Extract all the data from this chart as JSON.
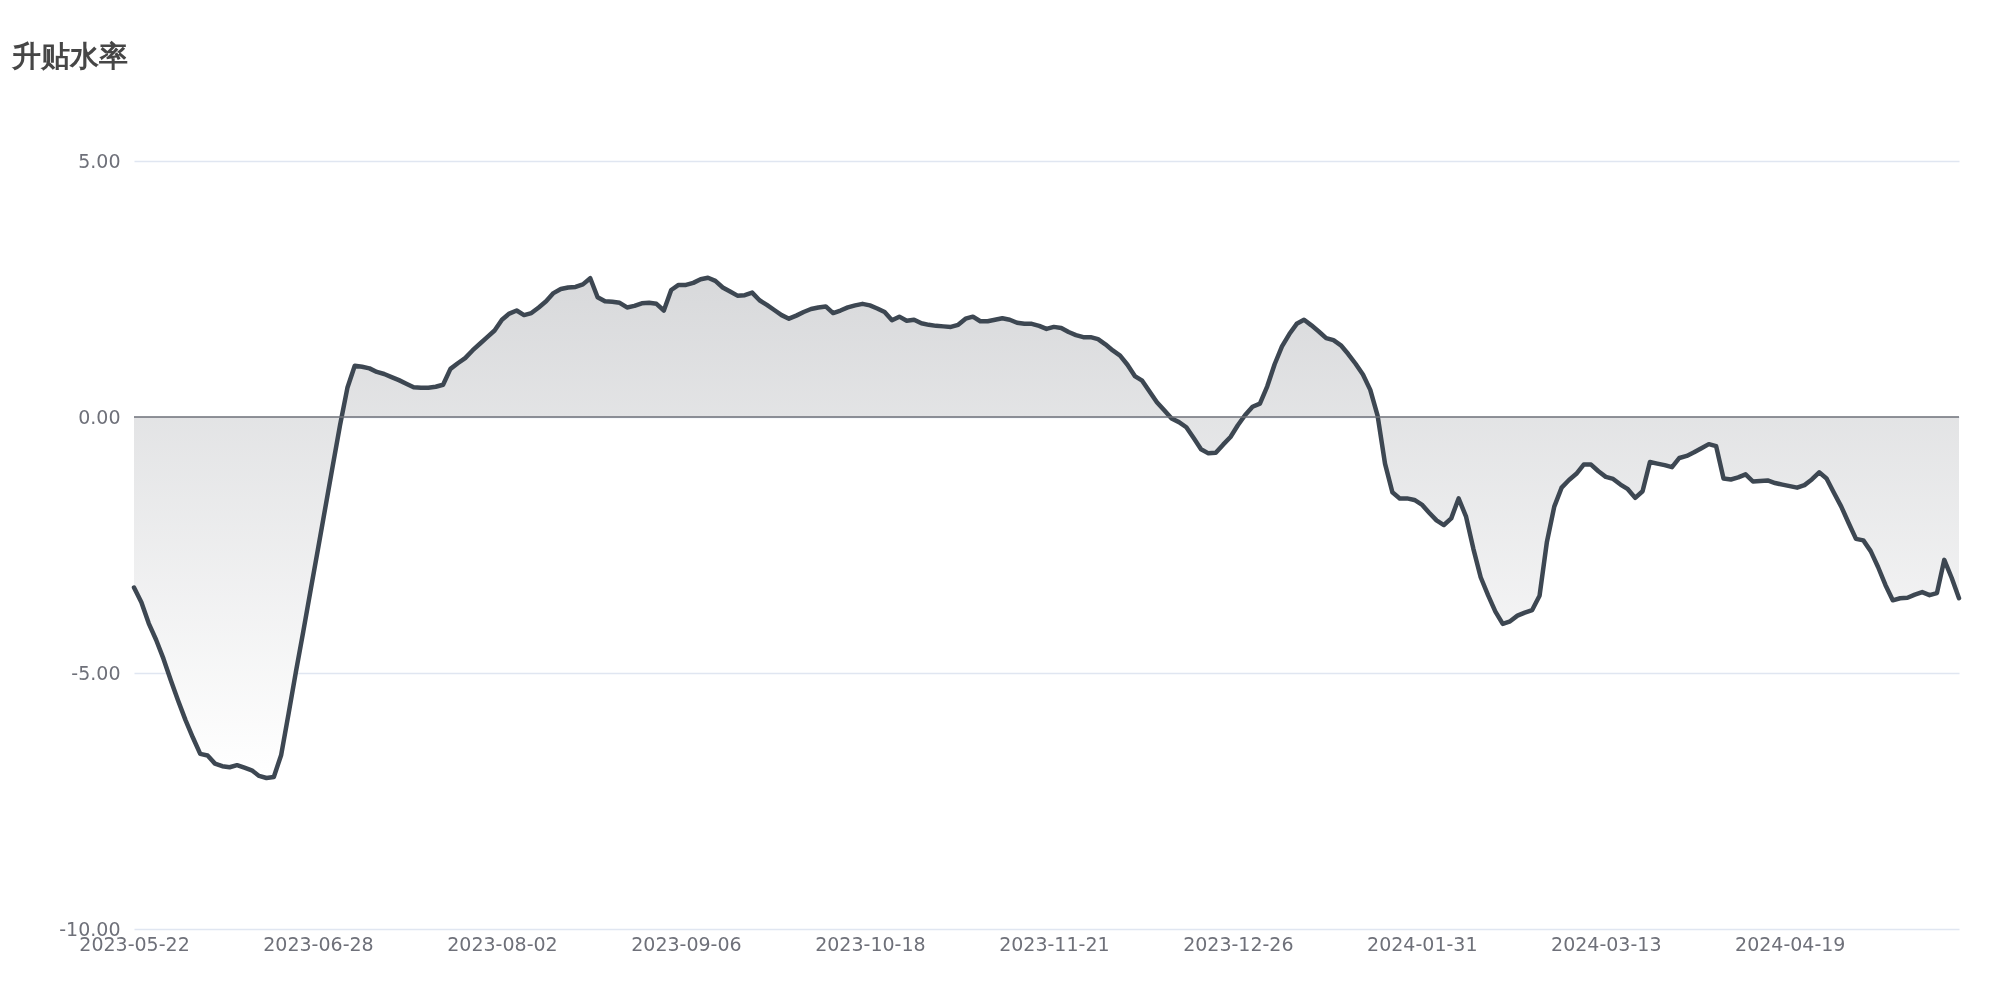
{
  "chart_data": {
    "type": "area",
    "title": "升贴水率",
    "categories": [
      "2023-05-22",
      null,
      null,
      null,
      null,
      null,
      null,
      null,
      null,
      null,
      null,
      null,
      null,
      null,
      null,
      null,
      null,
      null,
      null,
      null,
      null,
      null,
      null,
      null,
      null,
      "2023-06-28",
      null,
      null,
      null,
      null,
      null,
      null,
      null,
      null,
      null,
      null,
      null,
      null,
      null,
      null,
      null,
      null,
      null,
      null,
      null,
      null,
      null,
      null,
      null,
      null,
      "2023-08-02",
      null,
      null,
      null,
      null,
      null,
      null,
      null,
      null,
      null,
      null,
      null,
      null,
      null,
      null,
      null,
      null,
      null,
      null,
      null,
      null,
      null,
      null,
      null,
      null,
      "2023-09-06",
      null,
      null,
      null,
      null,
      null,
      null,
      null,
      null,
      null,
      null,
      null,
      null,
      null,
      null,
      null,
      null,
      null,
      null,
      null,
      null,
      null,
      null,
      null,
      null,
      "2023-10-18",
      null,
      null,
      null,
      null,
      null,
      null,
      null,
      null,
      null,
      null,
      null,
      null,
      null,
      null,
      null,
      null,
      null,
      null,
      null,
      null,
      null,
      null,
      null,
      null,
      "2023-11-21",
      null,
      null,
      null,
      null,
      null,
      null,
      null,
      null,
      null,
      null,
      null,
      null,
      null,
      null,
      null,
      null,
      null,
      null,
      null,
      null,
      null,
      null,
      null,
      null,
      "2023-12-26",
      null,
      null,
      null,
      null,
      null,
      null,
      null,
      null,
      null,
      null,
      null,
      null,
      null,
      null,
      null,
      null,
      null,
      null,
      null,
      null,
      null,
      null,
      null,
      null,
      "2024-01-31",
      null,
      null,
      null,
      null,
      null,
      null,
      null,
      null,
      null,
      null,
      null,
      null,
      null,
      null,
      null,
      null,
      null,
      null,
      null,
      null,
      null,
      null,
      null,
      null,
      "2024-03-13",
      null,
      null,
      null,
      null,
      null,
      null,
      null,
      null,
      null,
      null,
      null,
      null,
      null,
      null,
      null,
      null,
      null,
      null,
      null,
      null,
      null,
      null,
      null,
      null,
      "2024-04-19",
      null,
      null,
      null,
      null,
      null,
      null,
      null,
      null,
      null,
      null,
      null,
      null,
      null,
      null,
      null,
      null,
      null,
      null,
      null,
      null,
      null,
      null,
      null
    ],
    "series": [
      {
        "color": "#3d4752",
        "values": [
          -3.33,
          -3.62,
          -4.03,
          -4.35,
          -4.72,
          -5.14,
          -5.54,
          -5.92,
          -6.26,
          -6.58,
          -6.61,
          -6.77,
          -6.82,
          -6.84,
          -6.8,
          -6.85,
          -6.9,
          -7.01,
          -7.05,
          -7.03,
          -6.6,
          -5.8,
          -4.98,
          -4.19,
          -3.38,
          -2.58,
          -1.77,
          -0.96,
          -0.16,
          0.57,
          1.0,
          0.98,
          0.95,
          0.88,
          0.84,
          0.78,
          0.72,
          0.65,
          0.58,
          0.57,
          0.57,
          0.59,
          0.63,
          0.94,
          1.05,
          1.15,
          1.3,
          1.43,
          1.56,
          1.69,
          1.9,
          2.02,
          2.08,
          1.99,
          2.03,
          2.14,
          2.26,
          2.42,
          2.5,
          2.53,
          2.54,
          2.59,
          2.71,
          2.34,
          2.26,
          2.25,
          2.23,
          2.14,
          2.17,
          2.22,
          2.23,
          2.21,
          2.08,
          2.48,
          2.58,
          2.58,
          2.62,
          2.69,
          2.72,
          2.66,
          2.53,
          2.45,
          2.37,
          2.38,
          2.43,
          2.28,
          2.19,
          2.09,
          1.99,
          1.92,
          1.98,
          2.05,
          2.11,
          2.14,
          2.16,
          2.03,
          2.08,
          2.14,
          2.18,
          2.21,
          2.18,
          2.12,
          2.05,
          1.89,
          1.96,
          1.88,
          1.9,
          1.83,
          1.8,
          1.78,
          1.77,
          1.76,
          1.8,
          1.92,
          1.96,
          1.87,
          1.87,
          1.9,
          1.93,
          1.9,
          1.84,
          1.82,
          1.82,
          1.78,
          1.72,
          1.76,
          1.74,
          1.66,
          1.6,
          1.56,
          1.56,
          1.52,
          1.42,
          1.3,
          1.2,
          1.02,
          0.8,
          0.71,
          0.5,
          0.29,
          0.13,
          -0.03,
          -0.1,
          -0.2,
          -0.41,
          -0.63,
          -0.71,
          -0.7,
          -0.54,
          -0.39,
          -0.16,
          0.04,
          0.2,
          0.26,
          0.6,
          1.03,
          1.38,
          1.62,
          1.82,
          1.9,
          1.79,
          1.67,
          1.54,
          1.5,
          1.4,
          1.23,
          1.04,
          0.83,
          0.53,
          0.02,
          -0.91,
          -1.47,
          -1.59,
          -1.59,
          -1.62,
          -1.71,
          -1.87,
          -2.02,
          -2.11,
          -1.98,
          -1.59,
          -1.94,
          -2.57,
          -3.13,
          -3.48,
          -3.8,
          -4.04,
          -3.99,
          -3.88,
          -3.82,
          -3.77,
          -3.49,
          -2.44,
          -1.75,
          -1.38,
          -1.23,
          -1.11,
          -0.93,
          -0.93,
          -1.06,
          -1.17,
          -1.21,
          -1.32,
          -1.41,
          -1.58,
          -1.45,
          -0.88,
          -0.91,
          -0.94,
          -0.98,
          -0.8,
          -0.76,
          -0.69,
          -0.61,
          -0.53,
          -0.57,
          -1.2,
          -1.22,
          -1.18,
          -1.12,
          -1.26,
          -1.25,
          -1.24,
          -1.29,
          -1.32,
          -1.35,
          -1.38,
          -1.33,
          -1.22,
          -1.08,
          -1.2,
          -1.48,
          -1.75,
          -2.07,
          -2.38,
          -2.41,
          -2.62,
          -2.93,
          -3.28,
          -3.58,
          -3.54,
          -3.53,
          -3.47,
          -3.42,
          -3.48,
          -3.44,
          -2.79,
          -3.14,
          -3.54
        ]
      }
    ],
    "ylim": [
      -10,
      5
    ],
    "yticks": [
      {
        "value": -10,
        "label": "-10.00"
      },
      {
        "value": -5,
        "label": "-5.00"
      },
      {
        "value": 0,
        "label": "0.00"
      },
      {
        "value": 5,
        "label": "5.00"
      }
    ],
    "grid": "y",
    "ref_lines": [
      {
        "axis": "y",
        "value": 0,
        "color": "#6e7079"
      }
    ]
  }
}
